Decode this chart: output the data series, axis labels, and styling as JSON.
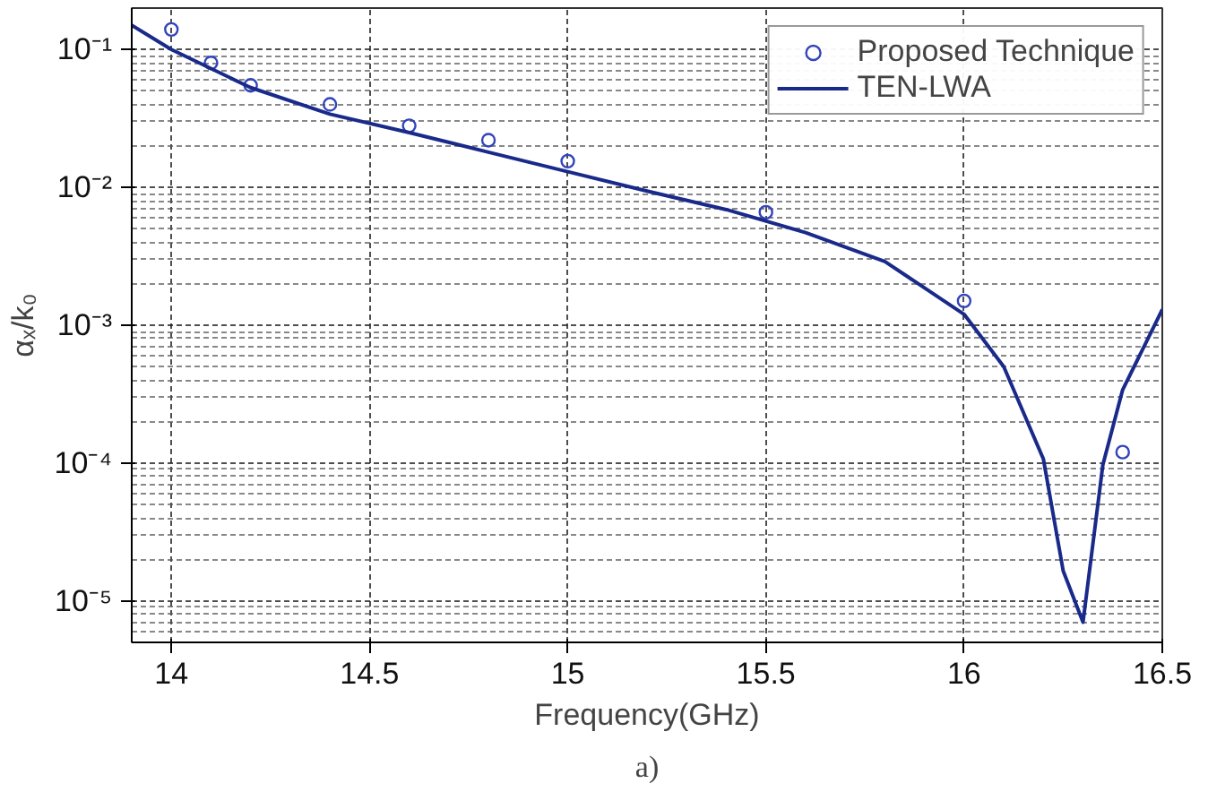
{
  "chart_data": {
    "type": "line",
    "xlabel": "Frequency(GHz)",
    "ylabel": "αₓ/k₀",
    "log": "y",
    "grid": true,
    "legend": "top right",
    "xlim": [
      13.9,
      16.5
    ],
    "xticks": [
      14,
      14.5,
      15,
      15.5,
      16,
      16.5
    ],
    "ylim": [
      5e-06,
      0.2
    ],
    "yticks": [
      {
        "value": 1e-05,
        "label": "10⁻⁵"
      },
      {
        "value": 0.0001,
        "label": "10⁻⁴"
      },
      {
        "value": 0.001,
        "label": "10⁻³"
      },
      {
        "value": 0.01,
        "label": "10⁻²"
      },
      {
        "value": 0.1,
        "label": "10⁻¹"
      }
    ],
    "series": [
      {
        "name": "Proposed Technique",
        "type": "scatter",
        "marker": "circle",
        "color": "#3344bb",
        "x": [
          14.0,
          14.1,
          14.2,
          14.4,
          14.6,
          14.8,
          15.0,
          15.5,
          16.0,
          16.4
        ],
        "values": [
          0.14,
          0.08,
          0.055,
          0.04,
          0.028,
          0.022,
          0.0155,
          0.0066,
          0.0015,
          0.00012
        ]
      },
      {
        "name": "TEN-LWA",
        "line_style": "solid",
        "color": "#1a2a8a",
        "x": [
          13.9,
          14.0,
          14.2,
          14.4,
          14.6,
          14.8,
          15.0,
          15.2,
          15.4,
          15.6,
          15.8,
          16.0,
          16.1,
          16.2,
          16.25,
          16.3,
          16.35,
          16.4,
          16.5
        ],
        "values": [
          0.15,
          0.1,
          0.053,
          0.034,
          0.025,
          0.018,
          0.013,
          0.0094,
          0.0069,
          0.0047,
          0.0029,
          0.0012,
          0.0005,
          0.000107,
          1.65e-05,
          7e-06,
          9.7e-05,
          0.00034,
          0.0013
        ]
      }
    ],
    "annotations": [
      "a)"
    ]
  }
}
